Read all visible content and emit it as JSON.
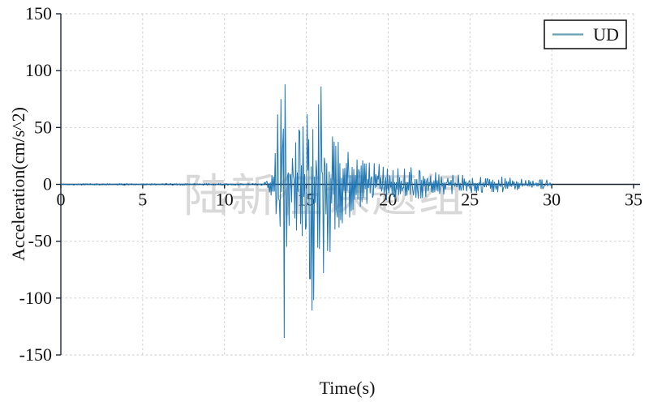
{
  "figure": {
    "background": "#ffffff",
    "description": "Seismic ground-motion acceleration time history, vertical (UD) component"
  },
  "chart_data": {
    "type": "line",
    "title": "",
    "xlabel": "Time(s)",
    "ylabel": "Acceleration(cm/s^2)",
    "xlim": [
      0,
      35
    ],
    "ylim": [
      -150,
      150
    ],
    "xticks": [
      0,
      5,
      10,
      15,
      20,
      25,
      30,
      35
    ],
    "yticks": [
      150,
      100,
      50,
      0,
      -50,
      -100,
      -150
    ],
    "grid": {
      "visible": true,
      "style": "dashed",
      "color": "#cbcbcb"
    },
    "axis_color": "#1c2633",
    "legend": {
      "label": "UD",
      "location": "upper right",
      "swatch_color": "#67a2b2",
      "border_color": "#1a1a1a",
      "background": "#ffffff"
    },
    "watermark": "陆新征课题组",
    "series": [
      {
        "name": "UD",
        "color": "#1f77b4",
        "duration_s": 30,
        "sample_dt_s": 0.05,
        "peak_acceleration": 88,
        "min_acceleration": -135,
        "quiet_until_s": 12.3,
        "envelope": [
          [
            0,
            0.8,
            -0.8
          ],
          [
            12.3,
            0.9,
            -0.9
          ],
          [
            12.6,
            3,
            -3
          ],
          [
            12.85,
            14,
            -11
          ],
          [
            13.0,
            28,
            -22
          ],
          [
            13.15,
            50,
            -35
          ],
          [
            13.3,
            75,
            -48
          ],
          [
            13.5,
            62,
            -57
          ],
          [
            13.63,
            88,
            -135
          ],
          [
            13.8,
            50,
            -60
          ],
          [
            14.0,
            38,
            -45
          ],
          [
            14.25,
            32,
            -38
          ],
          [
            14.5,
            56,
            -46
          ],
          [
            14.75,
            62,
            -52
          ],
          [
            15.0,
            66,
            -60
          ],
          [
            15.2,
            58,
            -83
          ],
          [
            15.4,
            52,
            -111
          ],
          [
            15.65,
            62,
            -70
          ],
          [
            15.9,
            86,
            -62
          ],
          [
            16.1,
            50,
            -78
          ],
          [
            16.35,
            46,
            -68
          ],
          [
            16.6,
            48,
            -52
          ],
          [
            16.85,
            40,
            -44
          ],
          [
            17.1,
            34,
            -36
          ],
          [
            17.5,
            29,
            -31
          ],
          [
            18,
            26,
            -26
          ],
          [
            18.5,
            22,
            -23
          ],
          [
            19,
            20,
            -20
          ],
          [
            19.5,
            18,
            -18
          ],
          [
            20,
            16,
            -16
          ],
          [
            20.5,
            15,
            -15
          ],
          [
            21,
            15,
            -14
          ],
          [
            21.5,
            18,
            -13
          ],
          [
            22,
            13,
            -14
          ],
          [
            22.5,
            12,
            -12
          ],
          [
            23,
            11,
            -11
          ],
          [
            23.5,
            10,
            -10
          ],
          [
            24,
            10,
            -9
          ],
          [
            24.5,
            9,
            -9
          ],
          [
            25,
            8,
            -8
          ],
          [
            25.5,
            8,
            -8
          ],
          [
            26,
            7,
            -7
          ],
          [
            26.5,
            8,
            -7
          ],
          [
            27,
            7,
            -7
          ],
          [
            27.5,
            6,
            -6
          ],
          [
            28,
            6,
            -6
          ],
          [
            28.5,
            5,
            -5
          ],
          [
            29,
            5,
            -5
          ],
          [
            29.5,
            5,
            -5
          ],
          [
            29.85,
            4,
            -4
          ],
          [
            30,
            0.5,
            -0.5
          ]
        ],
        "notable_peaks": [
          [
            13.45,
            75
          ],
          [
            13.63,
            -135
          ],
          [
            13.7,
            88
          ],
          [
            15.2,
            -83
          ],
          [
            15.37,
            -111
          ],
          [
            15.9,
            86
          ],
          [
            16.05,
            -78
          ]
        ]
      }
    ]
  }
}
